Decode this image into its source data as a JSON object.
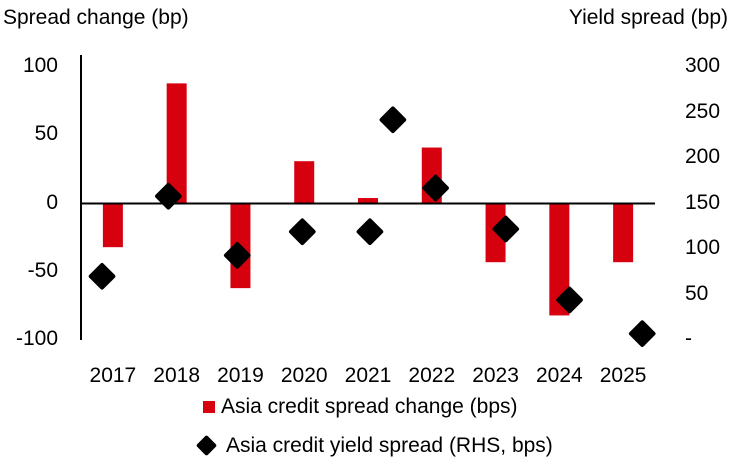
{
  "chart_data": {
    "type": "bar+scatter",
    "left_axis_title": "Spread change (bp)",
    "right_axis_title": "Yield spread (bp)",
    "categories": [
      "2017",
      "2018",
      "2019",
      "2020",
      "2021",
      "2022",
      "2023",
      "2024",
      "2025"
    ],
    "ylim_left": [
      -100,
      100
    ],
    "yticks_left": [
      "100",
      "50",
      "0",
      "-50",
      "-100"
    ],
    "ylim_right": [
      0,
      300
    ],
    "yticks_right": [
      "300",
      "250",
      "200",
      "150",
      "100",
      "50",
      "-"
    ],
    "grid": false,
    "legend_position": "bottom",
    "series": [
      {
        "name": "Asia credit spread change (bps)",
        "type": "bar",
        "axis": "left",
        "color": "#d7000f",
        "values": [
          -32,
          88,
          -62,
          31,
          4,
          41,
          -43,
          -82,
          -43
        ]
      },
      {
        "name": "Asia credit yield spread (RHS, bps)",
        "type": "scatter",
        "axis": "right",
        "color": "#000000",
        "marker": "diamond",
        "x": [
          2016.83,
          2017.87,
          2018.95,
          2019.97,
          2021.03,
          2021.39,
          2022.06,
          2023.16,
          2024.16,
          2025.3
        ],
        "values": [
          70,
          158,
          93,
          119,
          119,
          242,
          167,
          122,
          44,
          7
        ]
      }
    ]
  }
}
